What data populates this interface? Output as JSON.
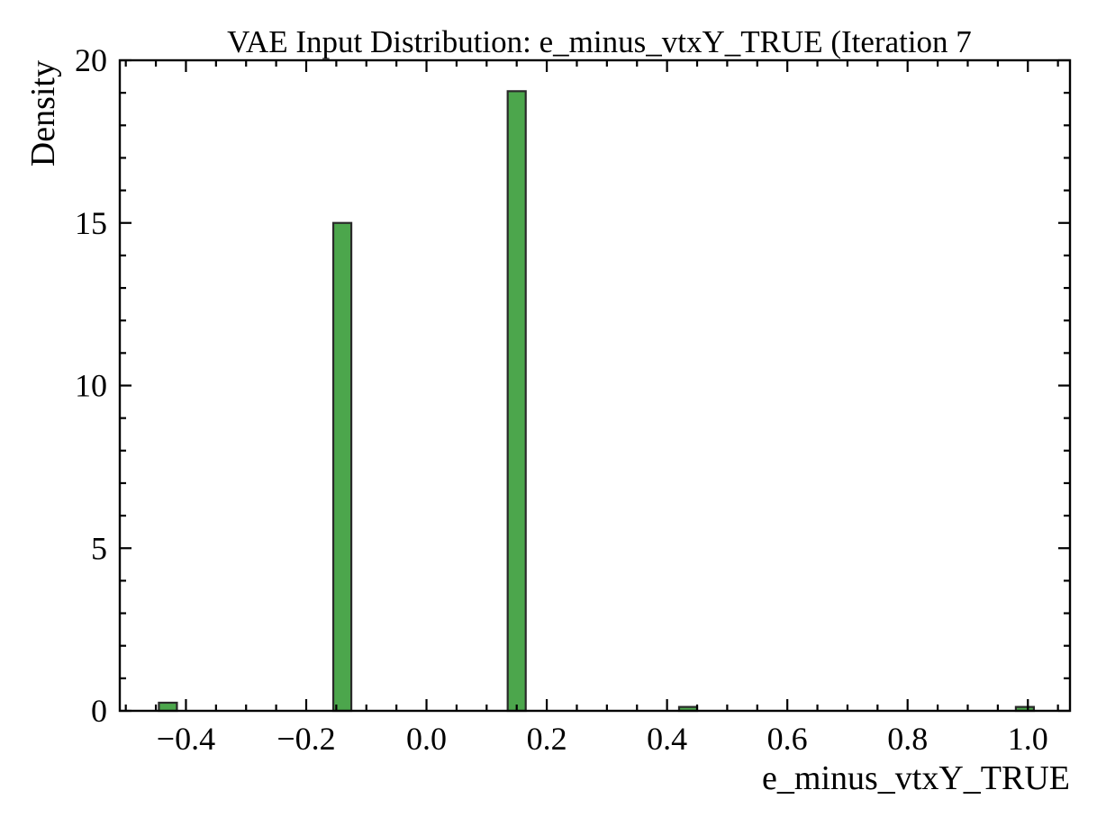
{
  "chart_data": {
    "type": "bar",
    "title": "VAE Input Distribution: e_minus_vtxY_TRUE (Iteration 7",
    "xlabel": "e_minus_vtxY_TRUE",
    "ylabel": "Density",
    "xlim": [
      -0.51,
      1.07
    ],
    "ylim": [
      0,
      20
    ],
    "xticks": [
      -0.4,
      -0.2,
      0.0,
      0.2,
      0.4,
      0.6,
      0.8,
      1.0
    ],
    "xtick_labels": [
      "−0.4",
      "−0.2",
      "0.0",
      "0.2",
      "0.4",
      "0.6",
      "0.8",
      "1.0"
    ],
    "yticks": [
      0,
      5,
      10,
      15,
      20
    ],
    "ytick_labels": [
      "0",
      "5",
      "10",
      "15",
      "20"
    ],
    "bin_width": 0.03,
    "bars": [
      {
        "x": -0.43,
        "value": 0.25
      },
      {
        "x": -0.14,
        "value": 15.0
      },
      {
        "x": 0.15,
        "value": 19.05
      },
      {
        "x": 0.435,
        "value": 0.12
      },
      {
        "x": 0.995,
        "value": 0.12
      }
    ],
    "grid": false,
    "colors": {
      "bar_fill": "#4ca64c",
      "bar_edge": "#2a2a2a",
      "axis": "#000000"
    }
  }
}
